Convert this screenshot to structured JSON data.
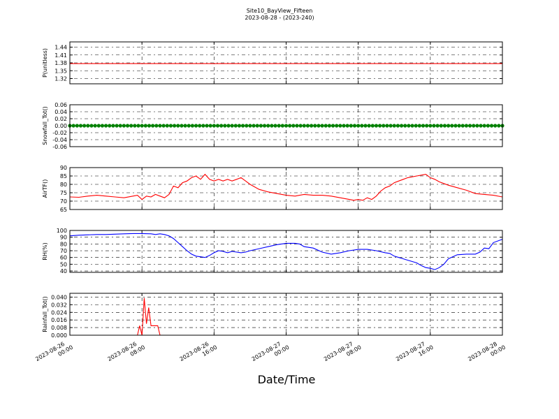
{
  "page": {
    "title": "Site10_BayView_Fifteen",
    "subtitle": "2023-08-28 - (2023-240)",
    "xlabel": "Date/Time"
  },
  "chart_data": [
    {
      "id": "p",
      "type": "line",
      "ylabel": "P(unitless)",
      "ylim": [
        1.3,
        1.46
      ],
      "yticks": [
        1.32,
        1.35,
        1.38,
        1.41,
        1.44
      ],
      "tick_decimals": 2,
      "grid": true,
      "color": "#ff0000",
      "x": [
        0,
        48
      ],
      "series": [
        {
          "values": [
            1.377,
            1.377
          ]
        }
      ]
    },
    {
      "id": "snow",
      "type": "line",
      "ylabel": "Snowfall_Tot()",
      "ylim": [
        -0.06,
        0.06
      ],
      "yticks": [
        -0.06,
        -0.04,
        -0.02,
        0.0,
        0.02,
        0.04,
        0.06
      ],
      "tick_decimals": 2,
      "grid": true,
      "color": "#008000",
      "marker": "dot",
      "x": [
        0,
        48
      ],
      "series": [
        {
          "values": [
            0,
            0
          ]
        }
      ]
    },
    {
      "id": "airt",
      "type": "line",
      "ylabel": "AirTF()",
      "ylim": [
        65,
        90
      ],
      "yticks": [
        65,
        70,
        75,
        80,
        85,
        90
      ],
      "tick_decimals": 0,
      "grid": true,
      "color": "#ff0000",
      "x": [
        0,
        1,
        2,
        3,
        4,
        5,
        6,
        7,
        7.5,
        8,
        8.5,
        9,
        9.5,
        10,
        10.5,
        11,
        11.5,
        12,
        12.5,
        13,
        13.5,
        14,
        14.5,
        15,
        15.5,
        16,
        16.5,
        17,
        17.5,
        18,
        18.5,
        19,
        19.5,
        20,
        21,
        22,
        23,
        24,
        25,
        25.5,
        26,
        27,
        28,
        29,
        30,
        31,
        31.5,
        32,
        32.5,
        33,
        33.5,
        34,
        34.5,
        35,
        35.5,
        36,
        36.5,
        37,
        37.5,
        38,
        38.5,
        39,
        39.5,
        40,
        40.5,
        41,
        42,
        43,
        44,
        45,
        46,
        47,
        48
      ],
      "series": [
        {
          "values": [
            72.5,
            72.3,
            73,
            73.5,
            73,
            72.5,
            72,
            73,
            73.5,
            71,
            73,
            72.5,
            74,
            73,
            72,
            74,
            79,
            78,
            81,
            82,
            84,
            85,
            83,
            86,
            83,
            82,
            83,
            82,
            83,
            82,
            83,
            84,
            82,
            80,
            77,
            75.5,
            74.5,
            73.5,
            73,
            73.5,
            74,
            73.5,
            73.5,
            73,
            72,
            71,
            70.5,
            71,
            70.5,
            72,
            71,
            73,
            76,
            78,
            79,
            81,
            82,
            83,
            84,
            84.5,
            85,
            85.5,
            86,
            84,
            83,
            81.5,
            79.5,
            78,
            76.5,
            74.5,
            74,
            73.5,
            72.5
          ]
        }
      ]
    },
    {
      "id": "rh",
      "type": "line",
      "ylabel": "RH(%)",
      "ylim": [
        38,
        100
      ],
      "yticks": [
        40,
        50,
        60,
        70,
        80,
        90,
        100
      ],
      "tick_decimals": 0,
      "grid": true,
      "color": "#0000ff",
      "x": [
        0,
        1,
        2,
        3,
        4,
        5,
        6,
        7,
        8,
        9,
        9.5,
        10,
        10.5,
        11,
        11.5,
        12,
        12.5,
        13,
        13.5,
        14,
        14.5,
        15,
        15.5,
        16,
        16.5,
        17,
        17.5,
        18,
        18.5,
        19,
        19.5,
        20,
        21,
        22,
        23,
        24,
        25,
        25.5,
        26,
        27,
        28,
        29,
        30,
        31,
        32,
        33,
        34,
        35,
        35.5,
        36,
        36.5,
        37,
        37.5,
        38,
        38.5,
        39,
        39.5,
        40,
        40.5,
        41,
        41.5,
        42,
        43,
        44,
        45,
        45.5,
        46,
        46.5,
        47,
        48
      ],
      "series": [
        {
          "values": [
            92,
            93,
            93.5,
            94,
            94,
            94.5,
            95,
            95.5,
            95.5,
            95,
            94,
            95,
            94,
            92,
            88,
            82,
            76,
            70,
            65,
            62,
            61,
            60,
            63,
            67,
            70,
            69,
            67,
            69,
            68,
            67,
            68,
            70,
            73,
            76,
            79,
            81,
            81,
            80,
            76,
            74,
            68,
            65,
            67,
            70,
            72,
            72,
            70,
            67,
            66,
            62,
            60,
            58,
            56,
            54,
            52,
            48,
            45,
            44,
            42,
            45,
            50,
            58,
            64,
            65,
            65,
            68,
            74,
            73,
            82,
            87
          ]
        }
      ]
    },
    {
      "id": "rain",
      "type": "line",
      "ylabel": "Rainfall_Tot()",
      "ylim": [
        0,
        0.044
      ],
      "yticks": [
        0.0,
        0.008,
        0.016,
        0.024,
        0.032,
        0.04
      ],
      "tick_decimals": 3,
      "grid": true,
      "color": "#ff0000",
      "x": [
        0,
        7.5,
        7.75,
        8,
        8.25,
        8.5,
        8.75,
        9,
        9.25,
        9.5,
        9.75,
        10,
        48
      ],
      "series": [
        {
          "values": [
            0,
            0,
            0.01,
            0,
            0.039,
            0.012,
            0.029,
            0.01,
            0.01,
            0.01,
            0.01,
            0,
            0
          ]
        }
      ]
    }
  ],
  "xaxis": {
    "range_hours": [
      0,
      48
    ],
    "ticks": [
      {
        "hours": 0,
        "line1": "2023-08-26",
        "line2": "00:00"
      },
      {
        "hours": 8,
        "line1": "2023-08-26",
        "line2": "08:00"
      },
      {
        "hours": 16,
        "line1": "2023-08-26",
        "line2": "16:00"
      },
      {
        "hours": 24,
        "line1": "2023-08-27",
        "line2": "00:00"
      },
      {
        "hours": 32,
        "line1": "2023-08-27",
        "line2": "08:00"
      },
      {
        "hours": 40,
        "line1": "2023-08-27",
        "line2": "16:00"
      },
      {
        "hours": 48,
        "line1": "2023-08-28",
        "line2": "00:00"
      }
    ]
  }
}
